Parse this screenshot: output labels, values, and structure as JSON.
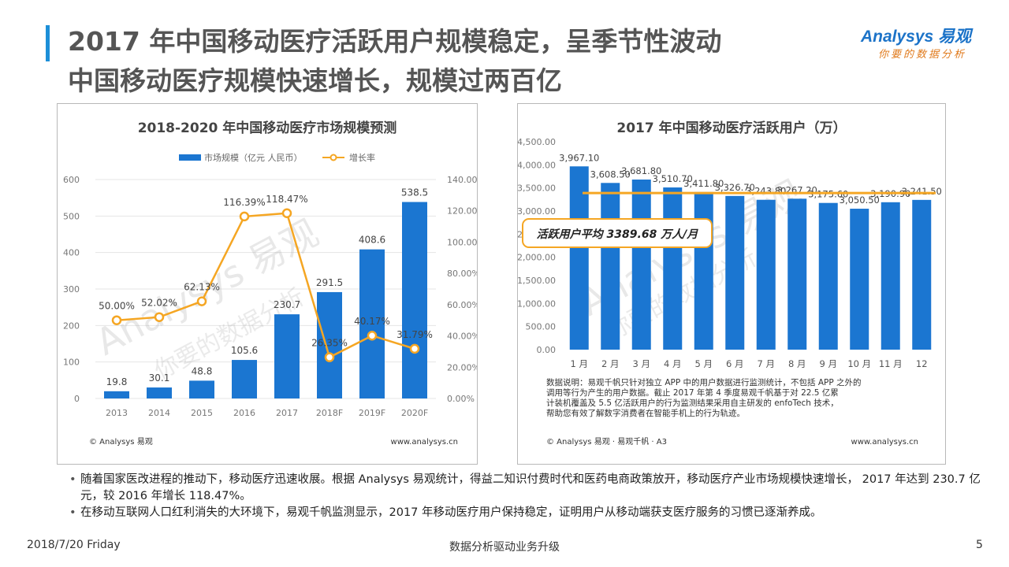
{
  "header": {
    "title_line1": "2017 年中国移动医疗活跃用户规模稳定，呈季节性波动",
    "title_line2": "中国移动医疗规模快速增长，规模过两百亿"
  },
  "logo": {
    "top": "Analysys 易观",
    "bottom": "你要的数据分析"
  },
  "chart_left": {
    "credit": "© Analysys 易观",
    "url": "www.analysys.cn",
    "watermark1": "Analysys 易观",
    "watermark2": "你要的数据分析"
  },
  "chart_right": {
    "credit": "© Analysys 易观 · 易观千帆 · A3",
    "url": "www.analysys.cn",
    "note": "数据说明：易观千帆只针对独立 APP 中的用户数据进行监测统计，不包括 APP 之外的调用等行为产生的用户数据。截止 2017 年第 4 季度易观千帆基于对 22.5 亿累计装机覆盖及 5.5 亿活跃用户的行为监测结果采用自主研发的 enfoTech 技术，帮助您有效了解数字消费者在智能手机上的行为轨迹。",
    "avg_label": "活跃用户平均 3389.68 万人/月",
    "watermark1": "Analysys 易观",
    "watermark2": "你要的数据分析"
  },
  "chart_data": [
    {
      "type": "bar",
      "title": "2018-2020 年中国移动医疗市场规模预测",
      "categories": [
        "2013",
        "2014",
        "2015",
        "2016",
        "2017",
        "2018F",
        "2019F",
        "2020F"
      ],
      "series": [
        {
          "name": "市场规模（亿元 人民币）",
          "type": "bar",
          "axis": "left",
          "values": [
            19.8,
            30.1,
            48.8,
            105.6,
            230.7,
            291.5,
            408.6,
            538.5
          ],
          "labels": [
            "19.8",
            "30.1",
            "48.8",
            "105.6",
            "230.7",
            "291.5",
            "408.6",
            "538.5"
          ]
        },
        {
          "name": "增长率",
          "type": "line",
          "axis": "right",
          "values": [
            50.0,
            52.02,
            62.13,
            116.39,
            118.47,
            26.35,
            40.17,
            31.79
          ],
          "labels": [
            "50.00%",
            "52.02%",
            "62.13%",
            "116.39%",
            "118.47%",
            "26.35%",
            "40.17%",
            "31.79%"
          ]
        }
      ],
      "y_left": {
        "ylim": [
          0,
          600
        ],
        "ticks": [
          "0",
          "100",
          "200",
          "300",
          "400",
          "500",
          "600"
        ]
      },
      "y_right": {
        "ylim": [
          0,
          140
        ],
        "ticks": [
          "0.00%",
          "20.00%",
          "40.00%",
          "60.00%",
          "80.00%",
          "100.00%",
          "120.00%",
          "140.00%"
        ]
      },
      "legend": "top",
      "grid": true,
      "colors": {
        "bar": "#1b76d1",
        "line": "#f5a623",
        "grid": "#e5e5e5",
        "text": "#777777"
      }
    },
    {
      "type": "bar",
      "title": "2017 年中国移动医疗活跃用户（万）",
      "categories": [
        "1 月",
        "2 月",
        "3 月",
        "4 月",
        "5 月",
        "6 月",
        "7 月",
        "8 月",
        "9 月",
        "10 月",
        "11 月",
        "12"
      ],
      "values": [
        3967.1,
        3608.5,
        3681.8,
        3510.7,
        3411.8,
        3326.7,
        3243.8,
        3267.2,
        3175.6,
        3050.5,
        3190.9,
        3241.5
      ],
      "labels": [
        "3,967.10",
        "3,608.50",
        "3,681.80",
        "3,510.70",
        "3,411.80",
        "3,326.70",
        "3,243.80",
        "3,267.20",
        "3,175.60",
        "3,050.50",
        "3,190.90",
        "3,241.50"
      ],
      "average": 3389.68,
      "ylim": [
        0,
        4500
      ],
      "y_ticks": [
        "0.00",
        "500.00",
        "1,000.00",
        "1,500.00",
        "2,000.00",
        "2,500.00",
        "3,000.00",
        "3,500.00",
        "4,000.00",
        "4,500.00"
      ],
      "grid": false,
      "colors": {
        "bar": "#1b76d1",
        "avg": "#f5a623",
        "text": "#777777"
      }
    }
  ],
  "bullets": [
    "随着国家医改进程的推动下，移动医疗迅速收展。根据 Analysys 易观统计，得益二知识付费时代和医药电商政策放开，移动医疗产业市场规模快速增长， 2017 年达到 230.7 亿元，较 2016 年增长 118.47%。",
    "在移动互联网人口红利消失的大环境下，易观千帆监测显示，2017 年移动医疗用户保持稳定，证明用户从移动端获支医疗服务的习惯已逐渐养成。"
  ],
  "footer": {
    "date": "2018/7/20 Friday",
    "slogan": "数据分析驱动业务升级",
    "page": "5"
  }
}
